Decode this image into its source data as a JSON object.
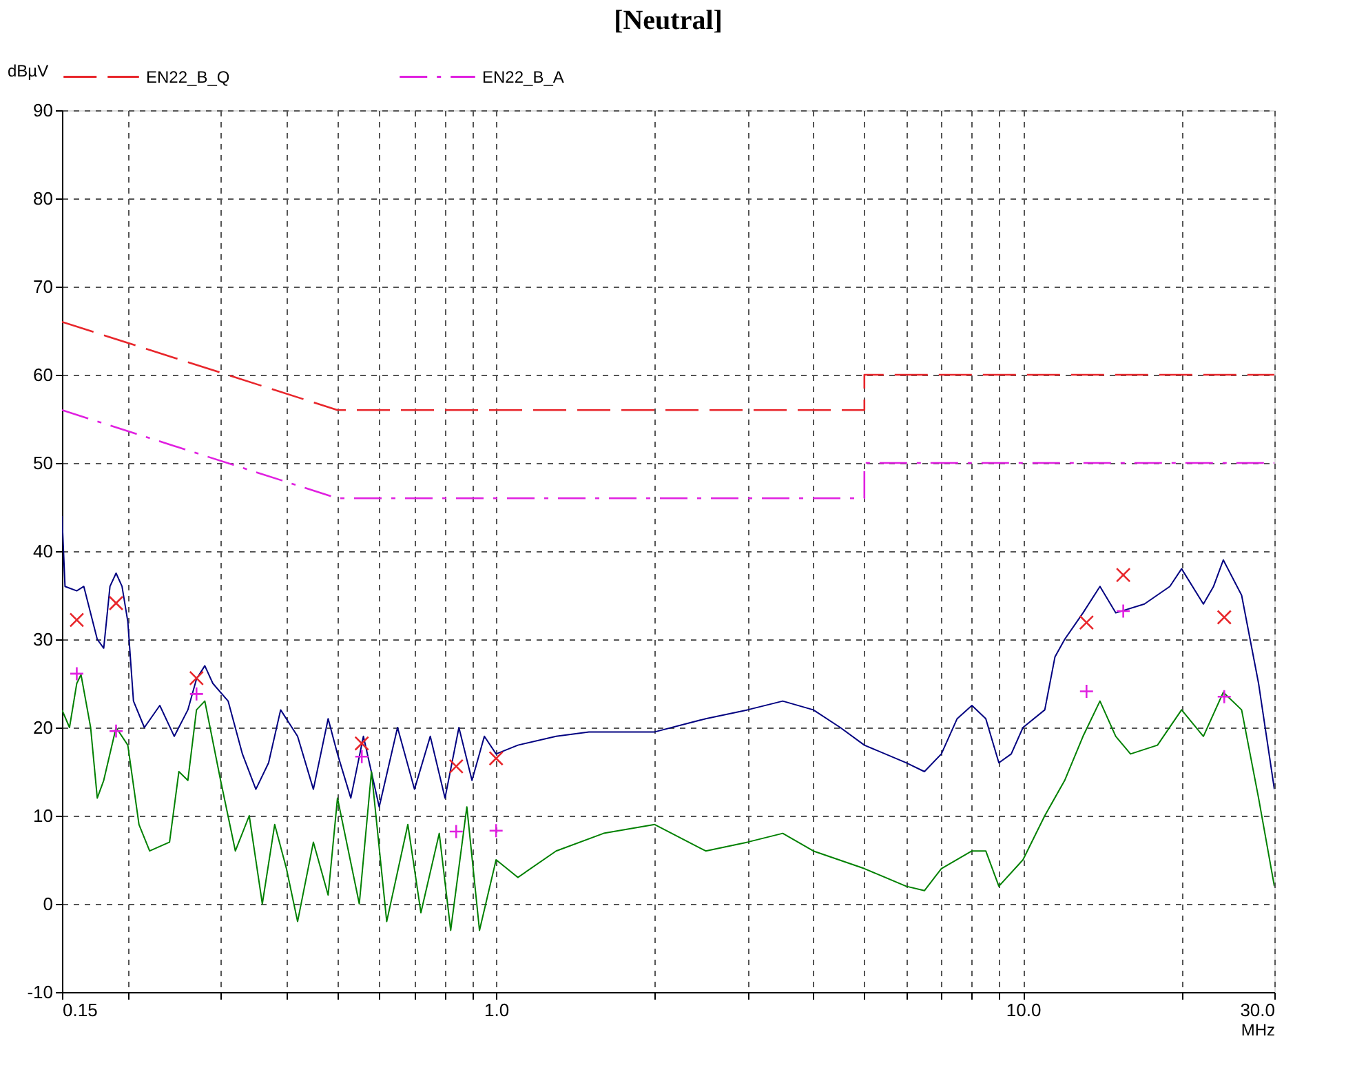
{
  "chart_data": {
    "type": "line",
    "title": "[Neutral]",
    "xlabel": "MHz",
    "ylabel": "dBµV",
    "log": "x",
    "grid": true,
    "legend": "top",
    "xlim": [
      0.15,
      30
    ],
    "ylim": [
      -10,
      90
    ],
    "xticks": [
      0.15,
      {
        "value": 0.2,
        "label": null
      },
      {
        "value": 0.3,
        "label": null
      },
      {
        "value": 0.4,
        "label": null
      },
      {
        "value": 0.5,
        "label": null
      },
      {
        "value": 0.6,
        "label": null
      },
      {
        "value": 0.7,
        "label": null
      },
      {
        "value": 0.8,
        "label": null
      },
      {
        "value": 0.9,
        "label": null
      },
      {
        "value": 1,
        "label": "1.0"
      },
      {
        "value": 2,
        "label": null
      },
      {
        "value": 3,
        "label": null
      },
      {
        "value": 4,
        "label": null
      },
      {
        "value": 5,
        "label": null
      },
      {
        "value": 6,
        "label": null
      },
      {
        "value": 7,
        "label": null
      },
      {
        "value": 8,
        "label": null
      },
      {
        "value": 9,
        "label": null
      },
      {
        "value": 10,
        "label": "10.0"
      },
      {
        "value": 20,
        "label": null
      },
      {
        "value": 30,
        "label": "30.0"
      }
    ],
    "yticks": [
      -10,
      0,
      10,
      20,
      30,
      40,
      50,
      60,
      70,
      80,
      90
    ],
    "series": [
      {
        "name": "EN22_B_Q",
        "color": "#e8262b",
        "line_style": "dashed",
        "x": [
          0.15,
          0.5,
          5,
          5,
          30
        ],
        "values": [
          66,
          56,
          56,
          60,
          60
        ]
      },
      {
        "name": "EN22_B_A",
        "color": "#e020e0",
        "line_style": "dashdot",
        "x": [
          0.15,
          0.5,
          5,
          5,
          30
        ],
        "values": [
          56,
          46,
          46,
          50,
          50
        ]
      },
      {
        "color": "#000080",
        "line_style": "solid",
        "x": [
          0.15,
          0.152,
          0.16,
          0.165,
          0.175,
          0.18,
          0.185,
          0.19,
          0.195,
          0.2,
          0.205,
          0.215,
          0.23,
          0.245,
          0.26,
          0.27,
          0.28,
          0.29,
          0.31,
          0.33,
          0.35,
          0.37,
          0.39,
          0.42,
          0.45,
          0.48,
          0.5,
          0.53,
          0.56,
          0.6,
          0.65,
          0.7,
          0.75,
          0.8,
          0.85,
          0.9,
          0.95,
          1.0,
          1.1,
          1.3,
          1.5,
          2.0,
          2.5,
          3.0,
          3.5,
          4.0,
          4.5,
          5.0,
          6.0,
          6.5,
          7.0,
          7.5,
          8.0,
          8.5,
          9.0,
          9.5,
          10,
          11,
          11.5,
          12,
          13,
          14,
          15,
          17,
          19,
          20,
          22,
          23,
          24,
          26,
          28,
          30
        ],
        "values": [
          44,
          36,
          35.5,
          36,
          30,
          29,
          36,
          37.5,
          36,
          32,
          23,
          20,
          22.5,
          19,
          22,
          25.5,
          27,
          25,
          23,
          17,
          13,
          16,
          22,
          19,
          13,
          21,
          17,
          12,
          19,
          11,
          20,
          13,
          19,
          12,
          20,
          14,
          19,
          17,
          18,
          19,
          19.5,
          19.5,
          21,
          22,
          23,
          22,
          20,
          18,
          16,
          15,
          17,
          21,
          22.5,
          21,
          16,
          17,
          20,
          22,
          28,
          30,
          33,
          36,
          33,
          34,
          36,
          38,
          34,
          36,
          39,
          35,
          25,
          13
        ]
      },
      {
        "color": "#008000",
        "line_style": "solid",
        "x": [
          0.15,
          0.155,
          0.16,
          0.163,
          0.17,
          0.175,
          0.18,
          0.19,
          0.2,
          0.21,
          0.22,
          0.24,
          0.25,
          0.26,
          0.27,
          0.28,
          0.3,
          0.32,
          0.34,
          0.36,
          0.38,
          0.4,
          0.42,
          0.45,
          0.48,
          0.5,
          0.55,
          0.58,
          0.62,
          0.68,
          0.72,
          0.78,
          0.82,
          0.88,
          0.93,
          1.0,
          1.1,
          1.3,
          1.6,
          2.0,
          2.5,
          3.0,
          3.5,
          4.0,
          5.0,
          6.0,
          6.5,
          7.0,
          8.0,
          8.5,
          9.0,
          10,
          11,
          12,
          13,
          14,
          15,
          16,
          18,
          20,
          22,
          24,
          26,
          28,
          30
        ],
        "values": [
          22,
          20,
          25,
          26,
          20,
          12,
          14,
          20,
          18,
          9,
          6,
          7,
          15,
          14,
          22,
          23,
          14,
          6,
          10,
          0,
          9,
          4,
          -2,
          7,
          1,
          12,
          0,
          15,
          -2,
          9,
          -1,
          8,
          -3,
          11,
          -3,
          5,
          3,
          6,
          8,
          9,
          6,
          7,
          8,
          6,
          4,
          2,
          1.5,
          4,
          6,
          6,
          2,
          5,
          10,
          14,
          19,
          23,
          19,
          17,
          18,
          22,
          19,
          24,
          22,
          12,
          2
        ]
      },
      {
        "type": "scatter",
        "marker": "x",
        "color": "#e8262b",
        "x": [
          0.16,
          0.19,
          0.27,
          0.556,
          0.84,
          1.0,
          13.2,
          15.5,
          24.1
        ],
        "values": [
          32.2,
          34.1,
          25.6,
          18.2,
          15.6,
          16.5,
          31.9,
          37.3,
          32.5
        ]
      },
      {
        "type": "scatter",
        "marker": "cross",
        "color": "#e020e0",
        "x": [
          0.16,
          0.19,
          0.27,
          0.556,
          0.84,
          1.0,
          13.2,
          15.5,
          24.1
        ],
        "values": [
          26.1,
          19.6,
          23.8,
          16.7,
          8.2,
          8.3,
          24.1,
          33.2,
          23.5
        ]
      }
    ]
  }
}
